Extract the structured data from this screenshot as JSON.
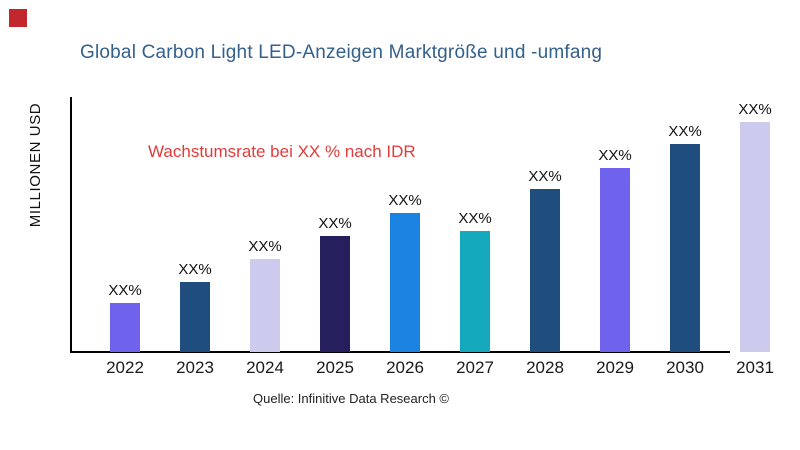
{
  "brand": {
    "square_color": "#C2272D"
  },
  "title": {
    "text": "Global Carbon Light LED-Anzeigen Marktgröße und -umfang",
    "color": "#33618C"
  },
  "annotation": {
    "text": "Wachstumsrate bei XX % nach IDR",
    "color": "#E23B3B"
  },
  "axes": {
    "y_label": "MILLIONEN USD",
    "x_label": ""
  },
  "source": {
    "text": "Quelle: Infinitive Data Research ©"
  },
  "chart_data": {
    "type": "bar",
    "title": "Global Carbon Light LED-Anzeigen Marktgröße und -umfang",
    "categories": [
      "2022",
      "2023",
      "2024",
      "2025",
      "2026",
      "2027",
      "2028",
      "2029",
      "2030",
      "2031"
    ],
    "values": [
      49,
      70,
      93,
      116,
      139,
      121,
      163,
      184,
      208,
      230
    ],
    "values_note": "relative bar heights in px; chart shows placeholder labels only",
    "bar_value_labels": [
      "XX%",
      "XX%",
      "XX%",
      "XX%",
      "XX%",
      "XX%",
      "XX%",
      "XX%",
      "XX%",
      "XX%"
    ],
    "bar_colors": [
      "#6F63EE",
      "#1F4E7E",
      "#CCCBEE",
      "#251F5E",
      "#1B82E2",
      "#14A9BC",
      "#1F4E7E",
      "#6F63EE",
      "#1F4E7E",
      "#CCCBEE"
    ],
    "xlabel": "",
    "ylabel": "MILLIONEN USD",
    "grid": false,
    "legend": false,
    "annotation": "Wachstumsrate bei XX % nach IDR"
  }
}
